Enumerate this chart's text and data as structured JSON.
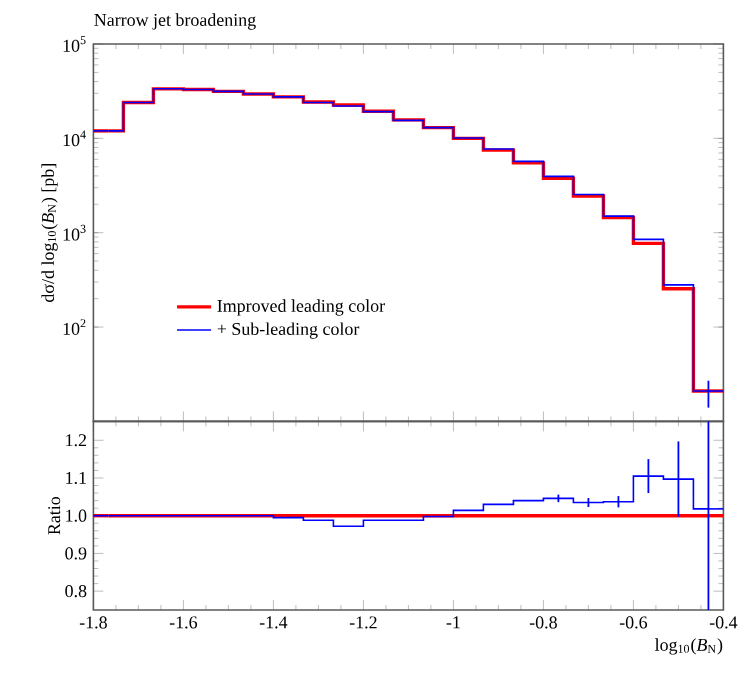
{
  "chart_data": [
    {
      "type": "step",
      "title": "Narrow jet broadening",
      "ylabel": "dσ/d log$_{10}$(*B*$_{N}$) [pb]",
      "log": true,
      "legend": "bottom left",
      "tick_labels": "y",
      "x": [
        -1.7667,
        -1.7,
        -1.6333,
        -1.5667,
        -1.5,
        -1.4333,
        -1.3667,
        -1.3,
        -1.2333,
        -1.1667,
        -1.1,
        -1.0333,
        -0.9667,
        -0.9,
        -0.8333,
        -0.7667,
        -0.7,
        -0.6333,
        -0.5667,
        -0.5,
        -0.4333
      ],
      "xlim": [
        -1.8,
        -0.4
      ],
      "xticks": [
        -1.8,
        -1.6,
        -1.4,
        -1.2,
        -1.0,
        -0.8,
        -0.6,
        -0.4
      ],
      "ylim": [
        10,
        100000
      ],
      "yticks": [
        {
          "value": 100,
          "label": "10$^{2}$"
        },
        {
          "value": 1000,
          "label": "10$^{3}$"
        },
        {
          "value": 10000,
          "label": "10$^{4}$"
        },
        {
          "value": 100000,
          "label": "10$^{5}$"
        }
      ],
      "series": [
        {
          "name": "Improved leading color",
          "color": "#ff0000",
          "values": [
            12000,
            24000,
            33500,
            33000,
            31500,
            29500,
            27500,
            24300,
            22600,
            19400,
            15700,
            13000,
            10000,
            7500,
            5500,
            3780,
            2450,
            1450,
            770,
            255,
            21
          ]
        },
        {
          "name": "+ Sub-leading color",
          "color": "#0000ff",
          "values": [
            12000,
            24000,
            33500,
            33000,
            31500,
            29500,
            27500,
            24000,
            22000,
            19200,
            15500,
            13000,
            10100,
            7700,
            5700,
            3950,
            2540,
            1500,
            850,
            280,
            21
          ],
          "errors": [
            null,
            null,
            null,
            null,
            null,
            null,
            null,
            null,
            null,
            null,
            null,
            null,
            null,
            null,
            null,
            null,
            null,
            null,
            null,
            null,
            [
              14,
              27
            ]
          ]
        }
      ]
    },
    {
      "type": "step",
      "ylabel": "Ratio",
      "xlabel": "log$_{10}$(*B*$_{N}$)",
      "x": [
        -1.7667,
        -1.7,
        -1.6333,
        -1.5667,
        -1.5,
        -1.4333,
        -1.3667,
        -1.3,
        -1.2333,
        -1.1667,
        -1.1,
        -1.0333,
        -0.9667,
        -0.9,
        -0.8333,
        -0.7667,
        -0.7,
        -0.6333,
        -0.5667,
        -0.5,
        -0.4333
      ],
      "xlim": [
        -1.8,
        -0.4
      ],
      "xticks": [
        -1.8,
        -1.6,
        -1.4,
        -1.2,
        -1,
        -0.8,
        -0.6,
        -0.4
      ],
      "ylim": [
        0.75,
        1.25
      ],
      "yticks": [
        0.8,
        0.9,
        {
          "value": 1.0,
          "label": "1.0"
        },
        1.1,
        1.2
      ],
      "series": [
        {
          "color": "#ff0000",
          "values": [
            1,
            1,
            1,
            1,
            1,
            1,
            1,
            1,
            1,
            1,
            1,
            1,
            1,
            1,
            1,
            1,
            1,
            1,
            1,
            1,
            1
          ]
        },
        {
          "color": "#0000ff",
          "values": [
            1.0,
            1.0,
            1.0,
            1.0,
            1.0,
            1.0,
            0.995,
            0.988,
            0.972,
            0.988,
            0.988,
            0.998,
            1.014,
            1.03,
            1.04,
            1.046,
            1.035,
            1.037,
            1.105,
            1.097,
            1.018
          ],
          "errors": [
            null,
            null,
            null,
            null,
            null,
            null,
            null,
            null,
            null,
            null,
            null,
            null,
            null,
            null,
            null,
            0.01,
            0.012,
            0.015,
            0.045,
            0.1,
            [
              0.75,
              1.25
            ]
          ]
        }
      ]
    }
  ]
}
